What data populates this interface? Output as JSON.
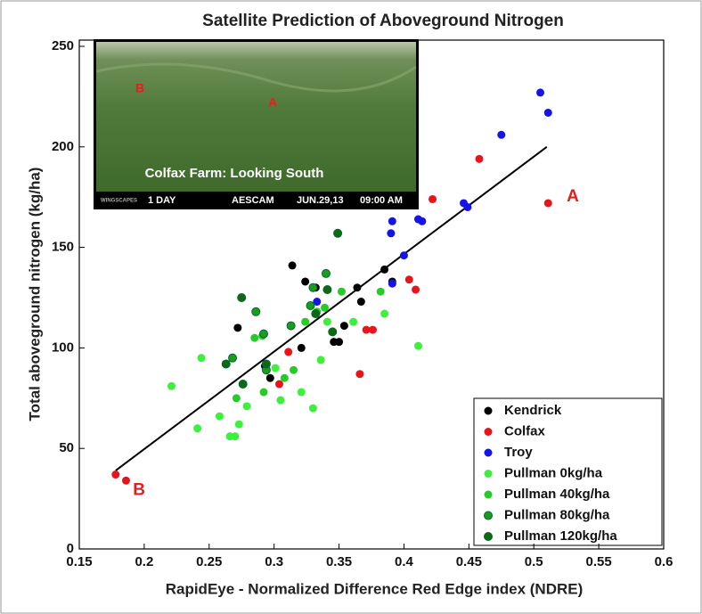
{
  "chart_data": {
    "type": "scatter",
    "title": "Satellite Prediction of Aboveground Nitrogen",
    "x_label": "RapidEye - Normalized Difference Red Edge index (NDRE)",
    "y_label": "Total aboveground nitrogen (kg/ha)",
    "xlim": [
      0.15,
      0.6
    ],
    "ylim": [
      0,
      250
    ],
    "xticks": [
      0.15,
      0.2,
      0.25,
      0.3,
      0.35,
      0.4,
      0.45,
      0.5,
      0.55,
      0.6
    ],
    "yticks": [
      0,
      50,
      100,
      150,
      200,
      250
    ],
    "legend": "lower right",
    "trend_line": {
      "color": "#000000",
      "x": [
        0.178,
        0.51
      ],
      "y": [
        39,
        200
      ]
    },
    "annotations": [
      {
        "text": "A",
        "x": 0.53,
        "y": 175,
        "color": "#e02020"
      },
      {
        "text": "B",
        "x": 0.196,
        "y": 29,
        "color": "#e02020"
      }
    ],
    "inset": {
      "caption": "Colfax Farm: Looking South",
      "marks": [
        "B",
        "A"
      ],
      "brand": "WINGSCAPES",
      "footer": [
        "1 DAY",
        "AESCAM",
        "JUN.29,13",
        "09:00 AM"
      ]
    },
    "series": [
      {
        "name": "Kendrick",
        "color": "#000000",
        "x": [
          0.272,
          0.314,
          0.324,
          0.332,
          0.297,
          0.321,
          0.346,
          0.35,
          0.354,
          0.364,
          0.367,
          0.385,
          0.391,
          0.293
        ],
        "values": [
          110,
          141,
          133,
          130,
          85,
          100,
          103,
          103,
          111,
          130,
          123,
          139,
          133,
          91
        ]
      },
      {
        "name": "Colfax",
        "color": "#e8141c",
        "x": [
          0.178,
          0.186,
          0.311,
          0.304,
          0.366,
          0.371,
          0.376,
          0.404,
          0.409,
          0.422,
          0.458,
          0.511
        ],
        "values": [
          37,
          34,
          98,
          82,
          87,
          109,
          109,
          134,
          129,
          174,
          194,
          172
        ]
      },
      {
        "name": "Troy",
        "color": "#1414e8",
        "x": [
          0.505,
          0.511,
          0.475,
          0.446,
          0.449,
          0.391,
          0.39,
          0.411,
          0.414,
          0.4,
          0.391,
          0.333
        ],
        "values": [
          227,
          217,
          206,
          172,
          170,
          163,
          157,
          164,
          163,
          146,
          132,
          123
        ]
      },
      {
        "name": "Pullman 0kg/ha",
        "color": "#3cf03c",
        "x": [
          0.221,
          0.244,
          0.241,
          0.258,
          0.266,
          0.27,
          0.273,
          0.279,
          0.305,
          0.301,
          0.33,
          0.321,
          0.336,
          0.385,
          0.411,
          0.341,
          0.361
        ],
        "values": [
          81,
          95,
          60,
          66,
          56,
          56,
          62,
          71,
          74,
          90,
          70,
          78,
          94,
          117,
          101,
          113,
          113
        ]
      },
      {
        "name": "Pullman 40kg/ha",
        "color": "#26cc26",
        "x": [
          0.271,
          0.292,
          0.308,
          0.315,
          0.285,
          0.291,
          0.324,
          0.333,
          0.339,
          0.352,
          0.382
        ],
        "values": [
          75,
          78,
          85,
          89,
          105,
          106,
          113,
          118,
          120,
          128,
          128
        ]
      },
      {
        "name": "Pullman 80kg/ha",
        "color": "#1c9c1c",
        "x": [
          0.268,
          0.286,
          0.292,
          0.313,
          0.328,
          0.33,
          0.34,
          0.294
        ],
        "values": [
          95,
          118,
          107,
          111,
          121,
          130,
          137,
          89
        ]
      },
      {
        "name": "Pullman 120kg/ha",
        "color": "#0e6a0e",
        "x": [
          0.275,
          0.263,
          0.276,
          0.294,
          0.349,
          0.341,
          0.345,
          0.332
        ],
        "values": [
          125,
          92,
          82,
          92,
          157,
          129,
          108,
          117
        ]
      }
    ]
  }
}
